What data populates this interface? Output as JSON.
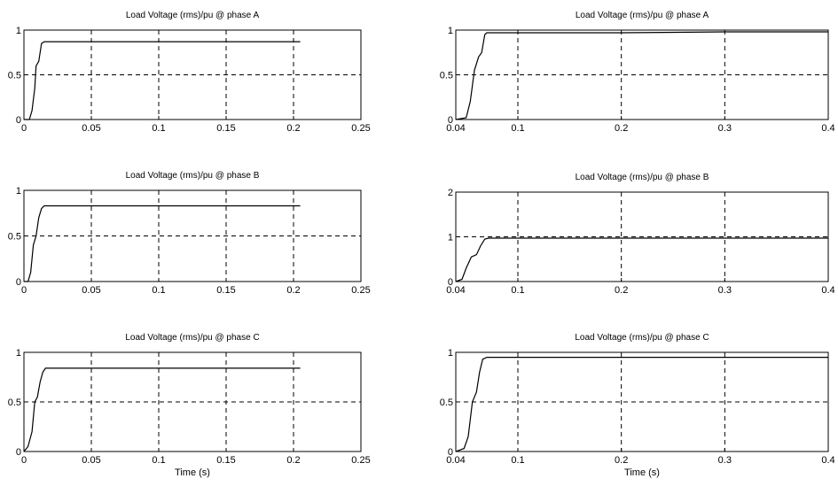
{
  "figure": {
    "background": "#ffffff",
    "line_color": "#000000"
  },
  "chart_data": [
    {
      "type": "line",
      "title": "Load Voltage (rms)/pu @ phase A",
      "xlabel": "",
      "xlim": [
        0,
        0.25
      ],
      "ylim": [
        0,
        1
      ],
      "xticks": [
        0,
        0.05,
        0.1,
        0.15,
        0.2,
        0.25
      ],
      "xtick_labels": [
        "0",
        "0.05",
        "0.1",
        "0.15",
        "0.2",
        "0.25"
      ],
      "yticks": [
        0,
        0.5,
        1
      ],
      "ytick_labels": [
        "0",
        "0.5",
        "1"
      ],
      "grid": true,
      "series": [
        {
          "x": [
            0,
            0.004,
            0.006,
            0.008,
            0.009,
            0.011,
            0.013,
            0.015,
            0.05,
            0.1,
            0.15,
            0.2,
            0.205
          ],
          "y": [
            0,
            0,
            0.1,
            0.35,
            0.6,
            0.65,
            0.85,
            0.87,
            0.87,
            0.87,
            0.87,
            0.87,
            0.87
          ]
        }
      ]
    },
    {
      "type": "line",
      "title": "Load Voltage (rms)/pu @ phase A",
      "xlabel": "",
      "xlim": [
        0.04,
        0.4
      ],
      "ylim": [
        0,
        1
      ],
      "xticks": [
        0.04,
        0.1,
        0.2,
        0.3,
        0.4
      ],
      "xtick_labels": [
        "0.04",
        "0.1",
        "0.2",
        "0.3",
        "0.4"
      ],
      "yticks": [
        0,
        0.5,
        1
      ],
      "ytick_labels": [
        "0",
        "0.5",
        "1"
      ],
      "grid": true,
      "series": [
        {
          "x": [
            0.04,
            0.05,
            0.054,
            0.058,
            0.062,
            0.065,
            0.068,
            0.07,
            0.1,
            0.2,
            0.3,
            0.4
          ],
          "y": [
            0,
            0.02,
            0.2,
            0.55,
            0.7,
            0.75,
            0.95,
            0.97,
            0.97,
            0.97,
            0.98,
            0.98
          ]
        }
      ]
    },
    {
      "type": "line",
      "title": "Load Voltage (rms)/pu @ phase B",
      "xlabel": "",
      "xlim": [
        0,
        0.25
      ],
      "ylim": [
        0,
        1
      ],
      "xticks": [
        0,
        0.05,
        0.1,
        0.15,
        0.2,
        0.25
      ],
      "xtick_labels": [
        "0",
        "0.05",
        "0.1",
        "0.15",
        "0.2",
        "0.25"
      ],
      "yticks": [
        0,
        0.5,
        1
      ],
      "ytick_labels": [
        "0",
        "0.5",
        "1"
      ],
      "grid": true,
      "series": [
        {
          "x": [
            0,
            0.003,
            0.005,
            0.007,
            0.009,
            0.011,
            0.013,
            0.015,
            0.05,
            0.1,
            0.15,
            0.2,
            0.205
          ],
          "y": [
            0,
            0,
            0.1,
            0.4,
            0.5,
            0.7,
            0.8,
            0.83,
            0.83,
            0.83,
            0.83,
            0.83,
            0.83
          ]
        }
      ]
    },
    {
      "type": "line",
      "title": "Load Voltage (rms)/pu @ phase B",
      "xlabel": "",
      "xlim": [
        0.04,
        0.4
      ],
      "ylim": [
        0,
        2
      ],
      "xticks": [
        0.04,
        0.1,
        0.2,
        0.3,
        0.4
      ],
      "xtick_labels": [
        "0.04",
        "0.1",
        "0.2",
        "0.3",
        "0.4"
      ],
      "yticks": [
        0,
        1,
        2
      ],
      "ytick_labels": [
        "0",
        "1",
        "2"
      ],
      "grid": true,
      "series": [
        {
          "x": [
            0.04,
            0.046,
            0.05,
            0.055,
            0.06,
            0.064,
            0.068,
            0.072,
            0.1,
            0.2,
            0.3,
            0.4
          ],
          "y": [
            0,
            0.05,
            0.3,
            0.55,
            0.6,
            0.8,
            0.95,
            0.97,
            0.97,
            0.97,
            0.97,
            0.97
          ]
        }
      ]
    },
    {
      "type": "line",
      "title": "Load Voltage (rms)/pu @ phase C",
      "xlabel": "Time (s)",
      "xlim": [
        0,
        0.25
      ],
      "ylim": [
        0,
        1
      ],
      "xticks": [
        0,
        0.05,
        0.1,
        0.15,
        0.2,
        0.25
      ],
      "xtick_labels": [
        "0",
        "0.05",
        "0.1",
        "0.15",
        "0.2",
        "0.25"
      ],
      "yticks": [
        0,
        0.5,
        1
      ],
      "ytick_labels": [
        "0",
        "0.5",
        "1"
      ],
      "grid": true,
      "series": [
        {
          "x": [
            0,
            0.003,
            0.006,
            0.008,
            0.01,
            0.012,
            0.014,
            0.016,
            0.05,
            0.1,
            0.15,
            0.2,
            0.205
          ],
          "y": [
            0,
            0.05,
            0.2,
            0.5,
            0.55,
            0.7,
            0.8,
            0.84,
            0.84,
            0.84,
            0.84,
            0.84,
            0.84
          ]
        }
      ]
    },
    {
      "type": "line",
      "title": "Load Voltage (rms)/pu @ phase C",
      "xlabel": "Time (s)",
      "xlim": [
        0.04,
        0.4
      ],
      "ylim": [
        0,
        1
      ],
      "xticks": [
        0.04,
        0.1,
        0.2,
        0.3,
        0.4
      ],
      "xtick_labels": [
        "0.04",
        "0.1",
        "0.2",
        "0.3",
        "0.4"
      ],
      "yticks": [
        0,
        0.5,
        1
      ],
      "ytick_labels": [
        "0",
        "0.5",
        "1"
      ],
      "grid": true,
      "series": [
        {
          "x": [
            0.04,
            0.048,
            0.052,
            0.056,
            0.06,
            0.063,
            0.066,
            0.07,
            0.1,
            0.2,
            0.3,
            0.4
          ],
          "y": [
            0,
            0.03,
            0.15,
            0.5,
            0.6,
            0.8,
            0.93,
            0.95,
            0.95,
            0.95,
            0.95,
            0.95
          ]
        }
      ]
    }
  ]
}
